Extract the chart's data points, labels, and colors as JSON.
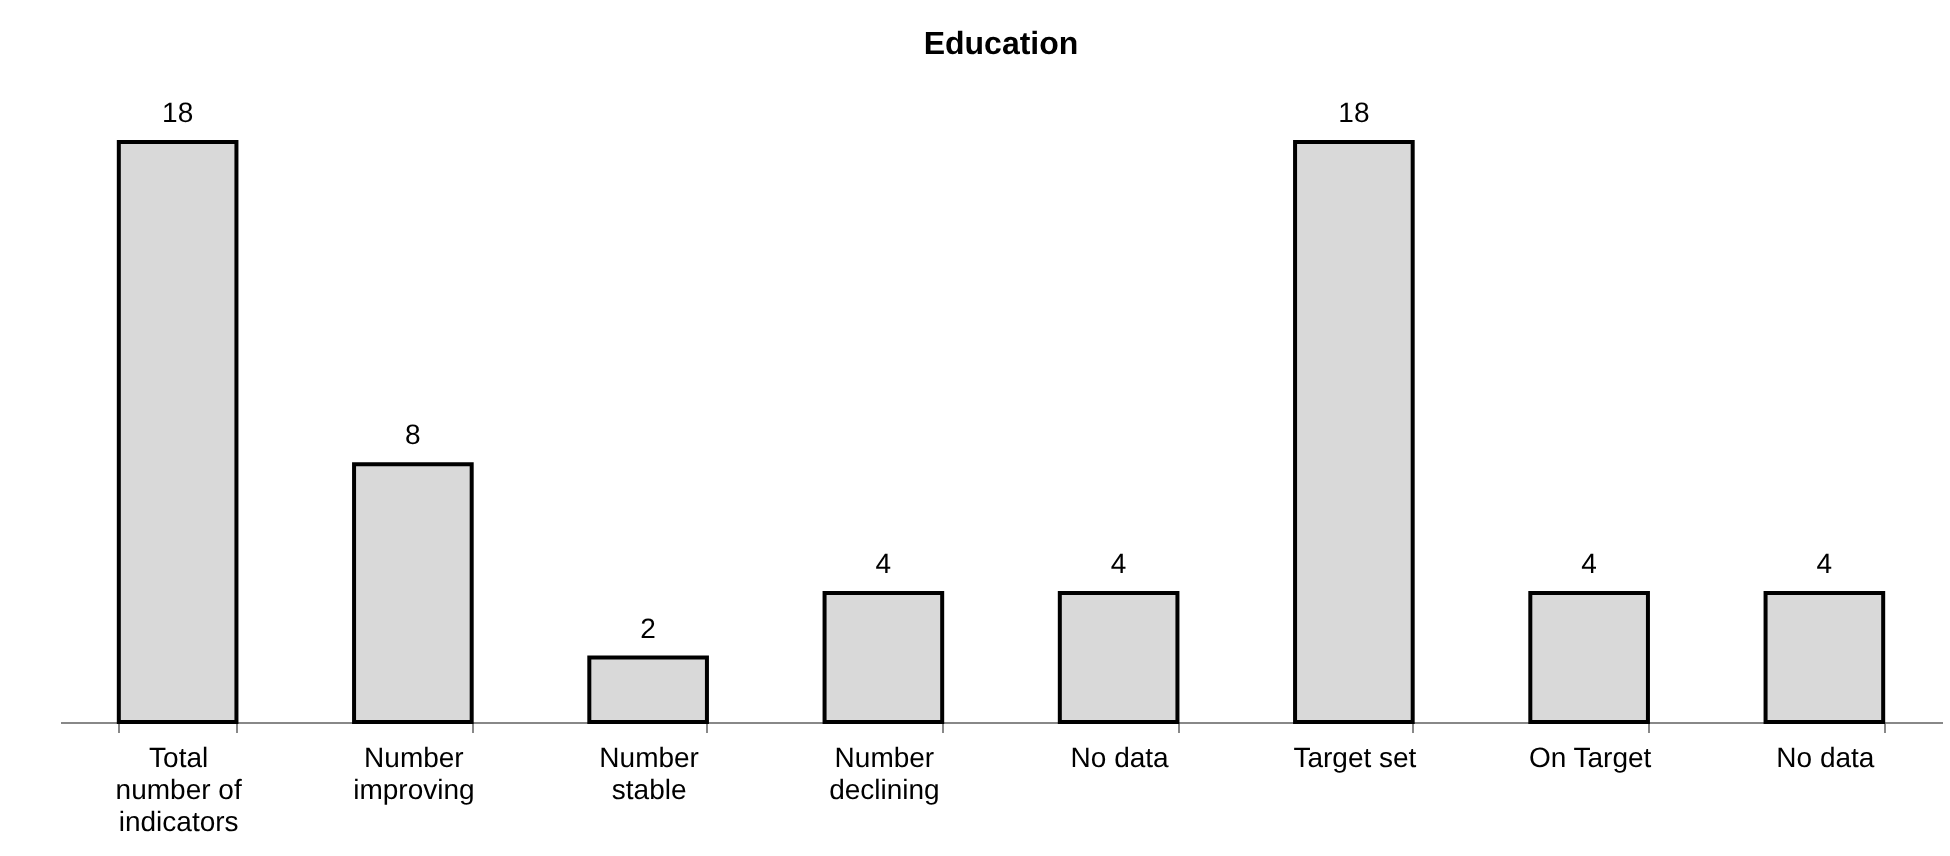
{
  "chart_data": {
    "type": "bar",
    "title": "Education",
    "categories": [
      "Total number of indicators",
      "Number improving",
      "Number stable",
      "Number declining",
      "No data",
      "Target set",
      "On Target",
      "No data"
    ],
    "values": [
      18,
      8,
      2,
      4,
      4,
      18,
      4,
      4
    ],
    "color": "#d9d9d9",
    "data_labels": true
  }
}
